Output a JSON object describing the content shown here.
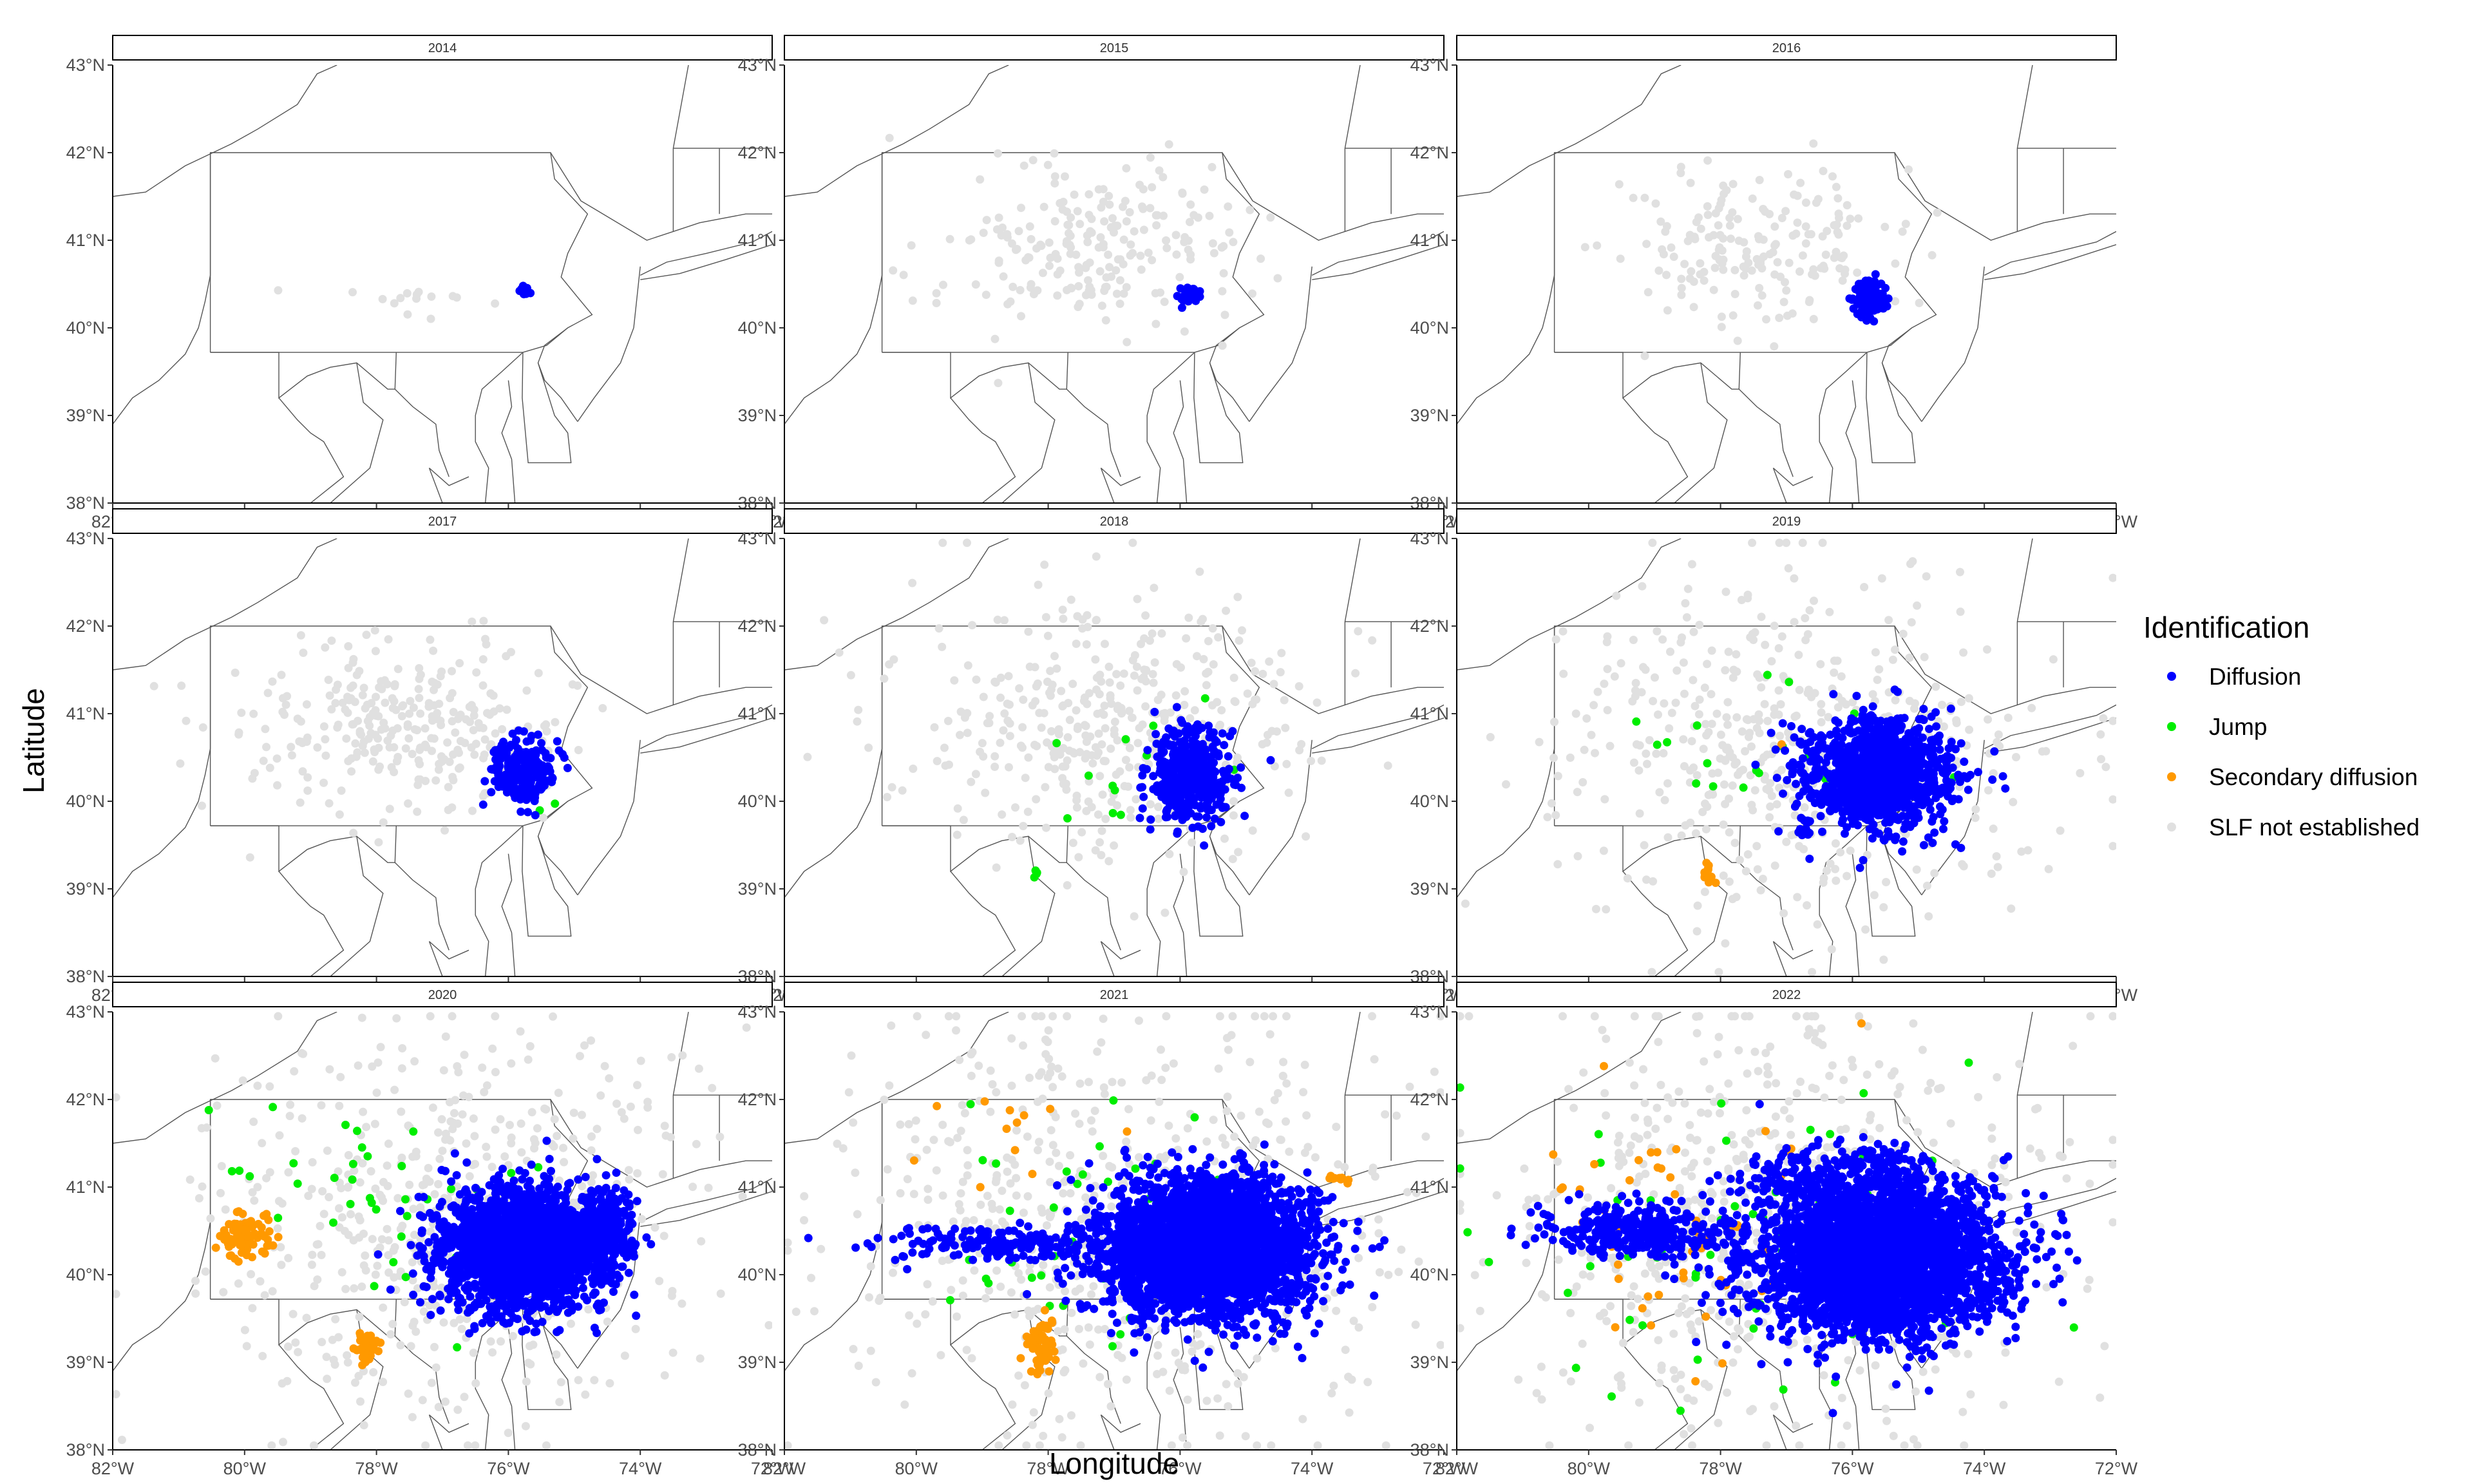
{
  "chart_data": {
    "type": "scatter",
    "facet_by": "year",
    "facets": [
      "2014",
      "2015",
      "2016",
      "2017",
      "2018",
      "2019",
      "2020",
      "2021",
      "2022"
    ],
    "xlabel": "Longitude",
    "ylabel": "Latitude",
    "xlim": [
      -82,
      -72
    ],
    "ylim": [
      38,
      43
    ],
    "x_ticks": [
      -82,
      -80,
      -78,
      -76,
      -74,
      -72
    ],
    "x_tick_labels": [
      "82°W",
      "80°W",
      "78°W",
      "76°W",
      "74°W",
      "72°W"
    ],
    "y_ticks": [
      38,
      39,
      40,
      41,
      42,
      43
    ],
    "y_tick_labels": [
      "38°N",
      "39°N",
      "40°N",
      "41°N",
      "42°N",
      "43°N"
    ],
    "grid": false,
    "legend": {
      "title": "Identification",
      "placement": "right",
      "entries": [
        {
          "name": "Diffusion",
          "color": "#0000ff"
        },
        {
          "name": "Jump",
          "color": "#00ee00"
        },
        {
          "name": "Secondary diffusion",
          "color": "#ff9900"
        },
        {
          "name": "SLF not established",
          "color": "#e0e0e0"
        }
      ]
    },
    "series_colors": {
      "Diffusion": "#0000ff",
      "Jump": "#00ee00",
      "Secondary diffusion": "#ff9900",
      "SLF not established": "#e0e0e0"
    },
    "panels": [
      {
        "year": "2014",
        "clusters": [
          {
            "series": "SLF not established",
            "center": [
              -77.3,
              40.3
            ],
            "spread": [
              0.7,
              0.15
            ],
            "n": 14
          },
          {
            "series": "SLF not established",
            "center": [
              -79.5,
              40.45
            ],
            "spread": [
              0.05,
              0.05
            ],
            "n": 1
          },
          {
            "series": "Diffusion",
            "center": [
              -75.75,
              40.42
            ],
            "spread": [
              0.07,
              0.05
            ],
            "n": 14
          }
        ]
      },
      {
        "year": "2015",
        "clusters": [
          {
            "series": "SLF not established",
            "center": [
              -77.4,
              40.9
            ],
            "spread": [
              1.8,
              0.8
            ],
            "n": 220
          },
          {
            "series": "Diffusion",
            "center": [
              -75.85,
              40.38
            ],
            "spread": [
              0.14,
              0.1
            ],
            "n": 40
          }
        ]
      },
      {
        "year": "2016",
        "clusters": [
          {
            "series": "SLF not established",
            "center": [
              -77.4,
              40.9
            ],
            "spread": [
              1.8,
              0.8
            ],
            "n": 190
          },
          {
            "series": "Diffusion",
            "center": [
              -75.75,
              40.35
            ],
            "spread": [
              0.2,
              0.17
            ],
            "n": 120
          }
        ]
      },
      {
        "year": "2017",
        "clusters": [
          {
            "series": "SLF not established",
            "center": [
              -77.5,
              40.9
            ],
            "spread": [
              2.0,
              0.8
            ],
            "n": 300
          },
          {
            "series": "Diffusion",
            "center": [
              -75.8,
              40.35
            ],
            "spread": [
              0.42,
              0.3
            ],
            "n": 230
          },
          {
            "series": "Jump",
            "center": [
              -75.4,
              40.0
            ],
            "spread": [
              0.3,
              0.1
            ],
            "n": 2
          }
        ]
      },
      {
        "year": "2018",
        "clusters": [
          {
            "series": "SLF not established",
            "center": [
              -77.0,
              40.8
            ],
            "spread": [
              2.6,
              1.2
            ],
            "n": 420
          },
          {
            "series": "Diffusion",
            "center": [
              -75.85,
              40.3
            ],
            "spread": [
              0.5,
              0.45
            ],
            "n": 420
          },
          {
            "series": "Jump",
            "center": [
              -77.0,
              40.3
            ],
            "spread": [
              1.6,
              0.8
            ],
            "n": 12
          },
          {
            "series": "Jump",
            "center": [
              -78.2,
              39.2
            ],
            "spread": [
              0.05,
              0.05
            ],
            "n": 4
          }
        ]
      },
      {
        "year": "2019",
        "clusters": [
          {
            "series": "SLF not established",
            "center": [
              -77.0,
              40.6
            ],
            "spread": [
              3.0,
              1.6
            ],
            "n": 480
          },
          {
            "series": "Diffusion",
            "center": [
              -75.6,
              40.3
            ],
            "spread": [
              0.95,
              0.5
            ],
            "n": 1200
          },
          {
            "series": "Jump",
            "center": [
              -77.0,
              40.6
            ],
            "spread": [
              2.3,
              0.7
            ],
            "n": 20
          },
          {
            "series": "Secondary diffusion",
            "center": [
              -78.2,
              39.2
            ],
            "spread": [
              0.07,
              0.1
            ],
            "n": 14
          },
          {
            "series": "Secondary diffusion",
            "center": [
              -77.1,
              40.6
            ],
            "spread": [
              0.05,
              0.05
            ],
            "n": 1
          }
        ]
      },
      {
        "year": "2020",
        "clusters": [
          {
            "series": "SLF not established",
            "center": [
              -77.0,
              40.6
            ],
            "spread": [
              3.2,
              1.8
            ],
            "n": 560
          },
          {
            "series": "Diffusion",
            "center": [
              -75.8,
              40.3
            ],
            "spread": [
              1.0,
              0.55
            ],
            "n": 2400
          },
          {
            "series": "Diffusion",
            "center": [
              -74.6,
              40.5
            ],
            "spread": [
              0.35,
              0.4
            ],
            "n": 300
          },
          {
            "series": "Jump",
            "center": [
              -78.0,
              40.9
            ],
            "spread": [
              1.9,
              0.9
            ],
            "n": 40
          },
          {
            "series": "Secondary diffusion",
            "center": [
              -80.0,
              40.45
            ],
            "spread": [
              0.3,
              0.2
            ],
            "n": 90
          },
          {
            "series": "Secondary diffusion",
            "center": [
              -78.15,
              39.2
            ],
            "spread": [
              0.12,
              0.15
            ],
            "n": 50
          }
        ]
      },
      {
        "year": "2021",
        "clusters": [
          {
            "series": "SLF not established",
            "center": [
              -77.0,
              40.6
            ],
            "spread": [
              3.4,
              2.0
            ],
            "n": 620
          },
          {
            "series": "Diffusion",
            "center": [
              -75.6,
              40.3
            ],
            "spread": [
              1.3,
              0.65
            ],
            "n": 3300
          },
          {
            "series": "Diffusion",
            "center": [
              -78.5,
              40.35
            ],
            "spread": [
              1.7,
              0.15
            ],
            "n": 180
          },
          {
            "series": "Jump",
            "center": [
              -77.5,
              40.5
            ],
            "spread": [
              2.6,
              1.2
            ],
            "n": 40
          },
          {
            "series": "Secondary diffusion",
            "center": [
              -78.1,
              39.2
            ],
            "spread": [
              0.2,
              0.25
            ],
            "n": 60
          },
          {
            "series": "Secondary diffusion",
            "center": [
              -73.6,
              41.1
            ],
            "spread": [
              0.15,
              0.05
            ],
            "n": 10
          },
          {
            "series": "Secondary diffusion",
            "center": [
              -78.5,
              41.4
            ],
            "spread": [
              1.5,
              0.5
            ],
            "n": 12
          }
        ]
      },
      {
        "year": "2022",
        "clusters": [
          {
            "series": "SLF not established",
            "center": [
              -77.0,
              40.6
            ],
            "spread": [
              3.6,
              2.0
            ],
            "n": 640
          },
          {
            "series": "Diffusion",
            "center": [
              -75.6,
              40.2
            ],
            "spread": [
              1.5,
              0.7
            ],
            "n": 3600
          },
          {
            "series": "Diffusion",
            "center": [
              -79.3,
              40.5
            ],
            "spread": [
              1.1,
              0.25
            ],
            "n": 320
          },
          {
            "series": "Diffusion",
            "center": [
              -76.2,
              41.1
            ],
            "spread": [
              1.3,
              0.3
            ],
            "n": 220
          },
          {
            "series": "Jump",
            "center": [
              -77.5,
              40.3
            ],
            "spread": [
              3.0,
              1.5
            ],
            "n": 60
          },
          {
            "series": "Secondary diffusion",
            "center": [
              -78.5,
              40.5
            ],
            "spread": [
              2.2,
              1.3
            ],
            "n": 60
          }
        ]
      }
    ]
  }
}
